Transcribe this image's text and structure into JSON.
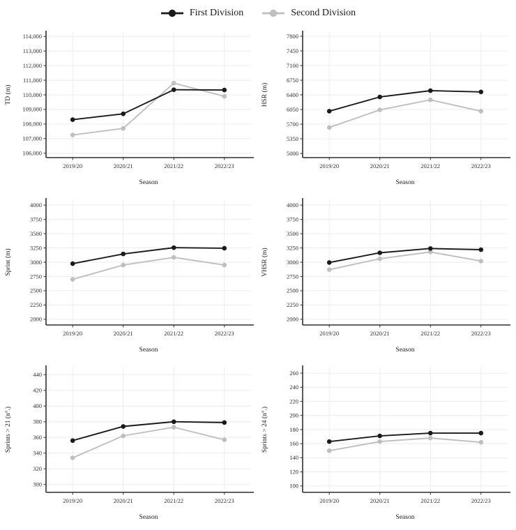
{
  "legend": {
    "items": [
      {
        "id": "first-division",
        "label": "First Division",
        "color": "#1a1a1a"
      },
      {
        "id": "second-division",
        "label": "Second Division",
        "color": "#bfbfbf"
      }
    ]
  },
  "colors": {
    "grid": "#ececec",
    "axis": "#2f2f2f",
    "tick_text": "#303030",
    "title_text": "#1a1a1a"
  },
  "chart_data": [
    {
      "type": "line",
      "ylabel": "TD (m)",
      "xlabel": "Season",
      "categories": [
        "2019/20",
        "2020/21",
        "2021/22",
        "2022/23"
      ],
      "yticks": [
        106000,
        107000,
        108000,
        109000,
        110000,
        111000,
        112000,
        113000,
        114000
      ],
      "ytick_labels": [
        "106,000",
        "107,000",
        "108,000",
        "109,000",
        "110,000",
        "111,000",
        "112,000",
        "113,000",
        "114,000"
      ],
      "ylim": [
        105700,
        114300
      ],
      "grid": true,
      "legend_position": "top",
      "series": [
        {
          "name": "First Division",
          "color": "#1a1a1a",
          "values": [
            108300,
            108700,
            110350,
            110330
          ]
        },
        {
          "name": "Second Division",
          "color": "#bfbfbf",
          "values": [
            107250,
            107700,
            110800,
            109900
          ]
        }
      ]
    },
    {
      "type": "line",
      "ylabel": "HSR (m)",
      "xlabel": "Season",
      "categories": [
        "2019/20",
        "2020/21",
        "2021/22",
        "2022/23"
      ],
      "yticks": [
        5000,
        5350,
        5700,
        6050,
        6400,
        6750,
        7100,
        7450,
        7800
      ],
      "ytick_labels": [
        "5000",
        "5350",
        "5700",
        "6050",
        "6400",
        "6750",
        "7100",
        "7450",
        "7800"
      ],
      "ylim": [
        4900,
        7900
      ],
      "grid": true,
      "legend_position": "top",
      "series": [
        {
          "name": "First Division",
          "color": "#1a1a1a",
          "values": [
            6010,
            6350,
            6500,
            6470
          ]
        },
        {
          "name": "Second Division",
          "color": "#bfbfbf",
          "values": [
            5620,
            6040,
            6280,
            6010
          ]
        }
      ]
    },
    {
      "type": "line",
      "ylabel": "Sprint (m)",
      "xlabel": "Season",
      "categories": [
        "2019/20",
        "2020/21",
        "2021/22",
        "2022/23"
      ],
      "yticks": [
        2000,
        2250,
        2500,
        2750,
        3000,
        3250,
        3500,
        3750,
        4000
      ],
      "ytick_labels": [
        "2000",
        "2250",
        "2500",
        "2750",
        "3000",
        "3250",
        "3500",
        "3750",
        "4000"
      ],
      "ylim": [
        1900,
        4100
      ],
      "grid": true,
      "legend_position": "top",
      "series": [
        {
          "name": "First Division",
          "color": "#1a1a1a",
          "values": [
            2975,
            3145,
            3255,
            3245
          ]
        },
        {
          "name": "Second Division",
          "color": "#bfbfbf",
          "values": [
            2700,
            2950,
            3085,
            2950
          ]
        }
      ]
    },
    {
      "type": "line",
      "ylabel": "VHSR (m)",
      "xlabel": "Season",
      "categories": [
        "2019/20",
        "2020/21",
        "2021/22",
        "2022/23"
      ],
      "yticks": [
        2000,
        2250,
        2500,
        2750,
        3000,
        3250,
        3500,
        3750,
        4000
      ],
      "ytick_labels": [
        "2000",
        "2250",
        "2500",
        "2750",
        "3000",
        "3250",
        "3500",
        "3750",
        "4000"
      ],
      "ylim": [
        1900,
        4100
      ],
      "grid": true,
      "legend_position": "top",
      "series": [
        {
          "name": "First Division",
          "color": "#1a1a1a",
          "values": [
            2995,
            3165,
            3240,
            3220
          ]
        },
        {
          "name": "Second Division",
          "color": "#bfbfbf",
          "values": [
            2870,
            3060,
            3180,
            3020
          ]
        }
      ]
    },
    {
      "type": "line",
      "ylabel": "Sprints > 21 (n°.)",
      "xlabel": "Season",
      "categories": [
        "2019/20",
        "2020/21",
        "2021/22",
        "2022/23"
      ],
      "yticks": [
        300,
        320,
        340,
        360,
        380,
        400,
        420,
        440
      ],
      "ytick_labels": [
        "300",
        "320",
        "340",
        "360",
        "380",
        "400",
        "420",
        "440"
      ],
      "ylim": [
        290,
        450
      ],
      "grid": true,
      "legend_position": "top",
      "series": [
        {
          "name": "First Division",
          "color": "#1a1a1a",
          "values": [
            356,
            374,
            380,
            379
          ]
        },
        {
          "name": "Second Division",
          "color": "#bfbfbf",
          "values": [
            334,
            362,
            373,
            357
          ]
        }
      ]
    },
    {
      "type": "line",
      "ylabel": "Sprints > 24 (n°.)",
      "xlabel": "Season",
      "categories": [
        "2019/20",
        "2020/21",
        "2021/22",
        "2022/23"
      ],
      "yticks": [
        100,
        120,
        140,
        160,
        180,
        200,
        220,
        240,
        260
      ],
      "ytick_labels": [
        "100",
        "120",
        "140",
        "160",
        "180",
        "200",
        "220",
        "240",
        "260"
      ],
      "ylim": [
        91,
        269
      ],
      "grid": true,
      "legend_position": "top",
      "series": [
        {
          "name": "First Division",
          "color": "#1a1a1a",
          "values": [
            163,
            171,
            175,
            175
          ]
        },
        {
          "name": "Second Division",
          "color": "#bfbfbf",
          "values": [
            150,
            163,
            168,
            162
          ]
        }
      ]
    }
  ]
}
